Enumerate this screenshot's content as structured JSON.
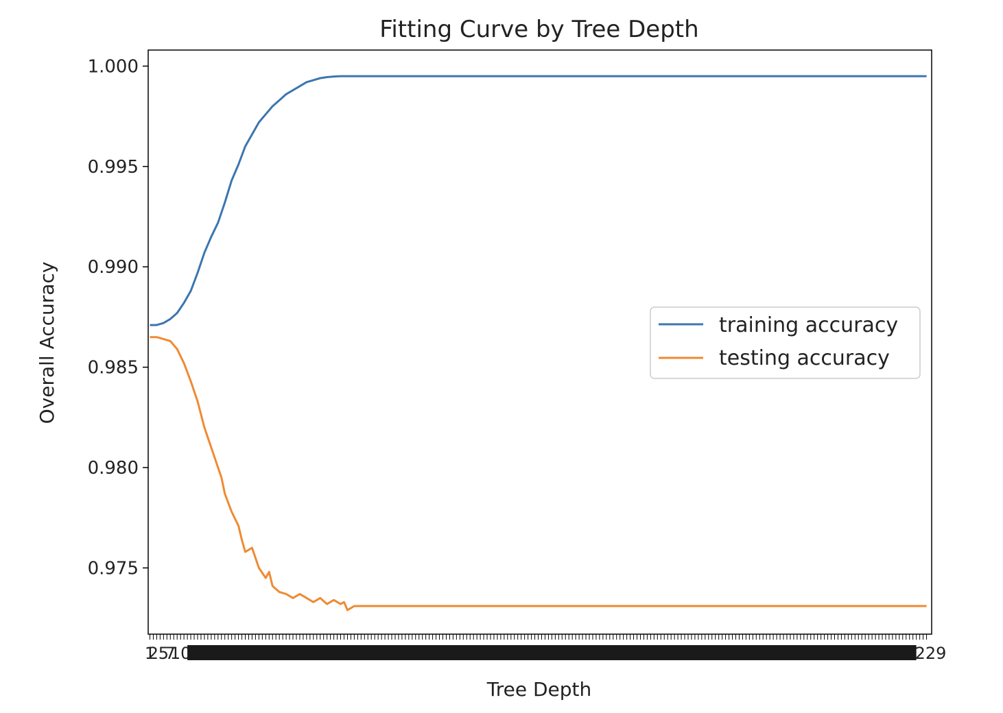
{
  "chart_data": {
    "type": "line",
    "title": "Fitting Curve by Tree Depth",
    "xlabel": "Tree Depth",
    "ylabel": "Overall Accuracy",
    "xlim": [
      0.5,
      230.5
    ],
    "ylim": [
      0.9717,
      1.0008
    ],
    "yticks": [
      0.975,
      0.98,
      0.985,
      0.99,
      0.995,
      1.0
    ],
    "ytick_labels": [
      "0.975",
      "0.980",
      "0.985",
      "0.990",
      "0.995",
      "1.000"
    ],
    "x_ticks_every_integer_from": 1,
    "x_ticks_every_integer_to": 229,
    "xtick_labels_visible": [
      "1",
      "2",
      "5",
      "7",
      "10",
      "229"
    ],
    "grid": false,
    "legend_position": "center-right",
    "series": [
      {
        "name": "training accuracy",
        "color": "#3b76af",
        "x": [
          1,
          3,
          5,
          7,
          9,
          11,
          13,
          15,
          17,
          19,
          21,
          23,
          25,
          27,
          29,
          31,
          33,
          35,
          37,
          39,
          41,
          43,
          45,
          47,
          49,
          51,
          53,
          55,
          57,
          59,
          61,
          65,
          70,
          80,
          100,
          150,
          200,
          229
        ],
        "values": [
          0.9871,
          0.9871,
          0.9872,
          0.9874,
          0.9877,
          0.9882,
          0.9888,
          0.9897,
          0.9907,
          0.9915,
          0.9922,
          0.9932,
          0.9943,
          0.9951,
          0.996,
          0.9966,
          0.9972,
          0.9976,
          0.998,
          0.9983,
          0.9986,
          0.9988,
          0.999,
          0.9992,
          0.9993,
          0.9994,
          0.99945,
          0.99948,
          0.9995,
          0.9995,
          0.9995,
          0.9995,
          0.9995,
          0.9995,
          0.9995,
          0.9995,
          0.9995,
          0.9995
        ]
      },
      {
        "name": "testing accuracy",
        "color": "#ef8a32",
        "x": [
          1,
          3,
          5,
          7,
          9,
          11,
          13,
          15,
          17,
          18,
          19,
          21,
          22,
          23,
          25,
          27,
          28,
          29,
          31,
          33,
          35,
          36,
          37,
          39,
          41,
          43,
          45,
          47,
          49,
          51,
          53,
          55,
          57,
          58,
          59,
          61,
          63,
          65,
          70,
          80,
          100,
          150,
          200,
          229
        ],
        "values": [
          0.9865,
          0.9865,
          0.9864,
          0.9863,
          0.9859,
          0.9852,
          0.9843,
          0.9833,
          0.982,
          0.9815,
          0.981,
          0.98,
          0.9795,
          0.9787,
          0.9778,
          0.9771,
          0.9764,
          0.9758,
          0.976,
          0.975,
          0.9745,
          0.9748,
          0.9741,
          0.9738,
          0.9737,
          0.9735,
          0.9737,
          0.9735,
          0.9733,
          0.9735,
          0.9732,
          0.9734,
          0.9732,
          0.9733,
          0.9729,
          0.9731,
          0.9731,
          0.9731,
          0.9731,
          0.9731,
          0.9731,
          0.9731,
          0.9731,
          0.9731
        ]
      }
    ]
  }
}
